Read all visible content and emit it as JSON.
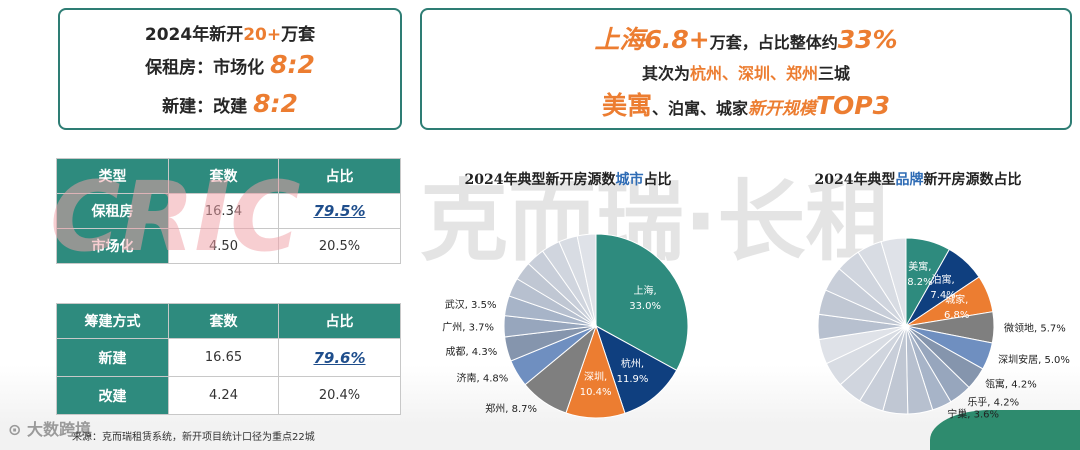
{
  "colors": {
    "teal": "#2e8b7e",
    "orange": "#ec7d31",
    "navy": "#0f3f7f",
    "watermark_red": "#f0a0a8",
    "watermark_gray": "#d9d9d9"
  },
  "card_left": {
    "l1_a": "2024年新开",
    "l1_b": "20+",
    "l1_c": "万套",
    "l2_a": "保租房：市场化 ",
    "l2_b": "8:2",
    "l3_a": "新建：改建 ",
    "l3_b": "8:2"
  },
  "card_right": {
    "l1_a": "上海6.8+",
    "l1_b": "万套，占比整体约",
    "l1_c": "33%",
    "l2_a": "其次为",
    "l2_b": "杭州、深圳、郑州",
    "l2_c": "三城",
    "l3_a": "美寓",
    "l3_b": "、泊寓、城家",
    "l3_c": "新开规模",
    "l3_d": "TOP3"
  },
  "watermark": {
    "logo_text": "CRIC",
    "text": "克而瑞·长租"
  },
  "table1": {
    "headers": [
      "类型",
      "套数",
      "占比"
    ],
    "rows": [
      {
        "label": "保租房",
        "count": "16.34",
        "share": "79.5%"
      },
      {
        "label": "市场化",
        "count": "4.50",
        "share": "20.5%"
      }
    ]
  },
  "table2": {
    "headers": [
      "筹建方式",
      "套数",
      "占比"
    ],
    "rows": [
      {
        "label": "新建",
        "count": "16.65",
        "share": "79.6%"
      },
      {
        "label": "改建",
        "count": "4.24",
        "share": "20.4%"
      }
    ]
  },
  "chart_data": [
    {
      "type": "pie",
      "title_a": "2024年典型新开房源数",
      "title_b": "城市",
      "title_c": "占比",
      "slices": [
        {
          "label": "上海",
          "value": 33.0,
          "text": "33.0%",
          "color": "#2e8b7e",
          "inside": true
        },
        {
          "label": "杭州",
          "value": 11.9,
          "text": "11.9%",
          "color": "#0f3f7f",
          "inside": true
        },
        {
          "label": "深圳",
          "value": 10.4,
          "text": "10.4%",
          "color": "#ec7d31",
          "inside": true
        },
        {
          "label": "郑州",
          "value": 8.7,
          "text": "8.7%",
          "color": "#7f7f7f",
          "inside": false
        },
        {
          "label": "济南",
          "value": 4.8,
          "text": "4.8%",
          "color": "#6f8fc0",
          "inside": false
        },
        {
          "label": "成都",
          "value": 4.3,
          "text": "4.3%",
          "color": "#8595ad",
          "inside": false
        },
        {
          "label": "广州",
          "value": 3.7,
          "text": "3.7%",
          "color": "#97a6bd",
          "inside": false
        },
        {
          "label": "武汉",
          "value": 3.5,
          "text": "3.5%",
          "color": "#a7b4c8",
          "inside": false
        },
        {
          "label": "",
          "value": 19.7,
          "text": "",
          "color": "#c5cbd6",
          "inside": false,
          "split": 6
        }
      ]
    },
    {
      "type": "pie",
      "title_a": "2024年典型",
      "title_b": "品牌",
      "title_c": "新开房源数占比",
      "slices": [
        {
          "label": "美寓",
          "value": 8.2,
          "text": "8.2%",
          "color": "#2e8b7e",
          "inside": true
        },
        {
          "label": "泊寓",
          "value": 7.4,
          "text": "7.4%",
          "color": "#0f3f7f",
          "inside": true
        },
        {
          "label": "城家",
          "value": 6.8,
          "text": "6.8%",
          "color": "#ec7d31",
          "inside": true
        },
        {
          "label": "微领地",
          "value": 5.7,
          "text": "5.7%",
          "color": "#7f7f7f",
          "inside": false
        },
        {
          "label": "深圳安居",
          "value": 5.0,
          "text": "5.0%",
          "color": "#6f8fc0",
          "inside": false
        },
        {
          "label": "瓴寓",
          "value": 4.2,
          "text": "4.2%",
          "color": "#8595ad",
          "inside": false
        },
        {
          "label": "乐乎",
          "value": 4.2,
          "text": "4.2%",
          "color": "#97a6bd",
          "inside": false
        },
        {
          "label": "宁巢",
          "value": 3.6,
          "text": "3.6%",
          "color": "#a7b4c8",
          "inside": false
        },
        {
          "label": "",
          "value": 54.9,
          "text": "",
          "color": "#c5cbd6",
          "inside": false,
          "split": 12
        }
      ]
    }
  ],
  "footer": {
    "source": "来源：克而瑞租赁系统，新开项目统计口径为重点22城",
    "logo": "大数跨境"
  }
}
